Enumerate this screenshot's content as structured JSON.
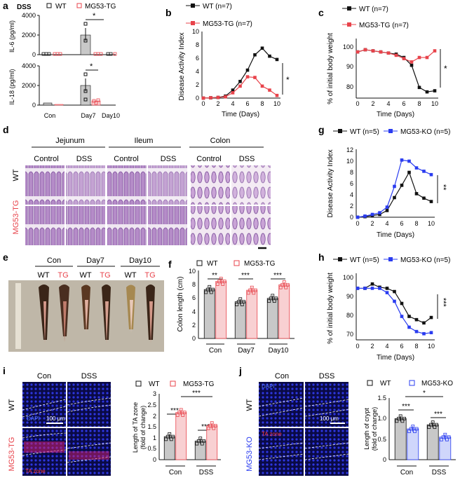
{
  "labels": {
    "a": "a",
    "b": "b",
    "c": "c",
    "d": "d",
    "e": "e",
    "f": "f",
    "g": "g",
    "h": "h",
    "i": "i",
    "j": "j"
  },
  "colors": {
    "wt": "#111111",
    "tg": "#e8434b",
    "ko": "#2a3cf0",
    "bar_gray": "#c8c8c8",
    "bar_pink": "#f8d0d2",
    "bar_blue": "#cfd6fb",
    "dapi_bg": "#0a0a46",
    "dapi_cell": "#2d36e0"
  },
  "panel_a": {
    "group_label": "DSS",
    "legend": [
      "WT",
      "MG53-TG"
    ],
    "ylabel_top": "IL-6 (pg/ml)",
    "ylabel_bottom": "IL-18 (pg/ml)",
    "yticks_top": [
      "0",
      "2000",
      "4000"
    ],
    "yticks_bottom": [
      "0",
      "2000",
      "4000"
    ],
    "xticks": [
      "Con",
      "Day7",
      "Day10"
    ],
    "star": "*"
  },
  "chart_data": [
    {
      "id": "a_top",
      "type": "bar",
      "categories": [
        "Con",
        "Day7",
        "Day10"
      ],
      "series": [
        {
          "name": "WT",
          "values": [
            0,
            2000,
            0
          ]
        },
        {
          "name": "MG53-TG",
          "values": [
            0,
            0,
            0
          ]
        }
      ],
      "ylabel": "IL-6 (pg/ml)",
      "ylim": [
        0,
        4000
      ]
    },
    {
      "id": "a_bottom",
      "type": "bar",
      "categories": [
        "Con",
        "Day7",
        "Day10"
      ],
      "series": [
        {
          "name": "WT",
          "values": [
            200,
            1950,
            50
          ]
        },
        {
          "name": "MG53-TG",
          "values": [
            60,
            400,
            40
          ]
        }
      ],
      "ylabel": "IL-18 (pg/ml)",
      "ylim": [
        0,
        4000
      ]
    },
    {
      "id": "b",
      "type": "line",
      "x": [
        0,
        1,
        2,
        3,
        4,
        5,
        6,
        7,
        8,
        9,
        10
      ],
      "series": [
        {
          "name": "WT (n=7)",
          "values": [
            0,
            0.05,
            0.1,
            0.3,
            1.2,
            2.5,
            4.2,
            6.5,
            7.5,
            6.3,
            5.8
          ]
        },
        {
          "name": "MG53-TG (n=7)",
          "values": [
            0,
            0.05,
            0.1,
            0.2,
            0.8,
            1.8,
            3.2,
            3.1,
            1.8,
            1.2,
            0.4
          ]
        }
      ],
      "xlabel": "Time (Days)",
      "ylabel": "Disease Activity Index",
      "ylim": [
        0,
        10
      ]
    },
    {
      "id": "c",
      "type": "line",
      "x": [
        0,
        1,
        2,
        3,
        4,
        5,
        6,
        7,
        8,
        9,
        10
      ],
      "series": [
        {
          "name": "WT (n=7)",
          "values": [
            100,
            101,
            100.5,
            100,
            99.5,
            99,
            97.5,
            94,
            84,
            82,
            82.5
          ]
        },
        {
          "name": "MG53-TG (n=7)",
          "values": [
            100,
            101,
            100.5,
            100,
            99.5,
            98.5,
            97,
            95.5,
            97.5,
            97.5,
            100.5
          ]
        }
      ],
      "xlabel": "Time (Days)",
      "ylabel": "% of initial body weight",
      "ylim": [
        75,
        105
      ]
    },
    {
      "id": "f",
      "type": "bar",
      "categories": [
        "Con",
        "Day7",
        "Day10"
      ],
      "series": [
        {
          "name": "WT",
          "values": [
            7.2,
            5.4,
            5.9
          ]
        },
        {
          "name": "MG53-TG",
          "values": [
            8.4,
            7.1,
            7.9
          ]
        }
      ],
      "ylabel": "Colon length (cm)",
      "ylim": [
        0,
        10
      ]
    },
    {
      "id": "g",
      "type": "line",
      "x": [
        0,
        1,
        2,
        3,
        4,
        5,
        6,
        7,
        8,
        9,
        10
      ],
      "series": [
        {
          "name": "WT (n=5)",
          "values": [
            0,
            0.1,
            0.3,
            0.5,
            1.2,
            3.5,
            5.7,
            8,
            4.2,
            3.4,
            2.8
          ]
        },
        {
          "name": "MG53-KO (n=5)",
          "values": [
            0,
            0.2,
            0.5,
            0.8,
            1.8,
            5.5,
            10.2,
            10,
            8.8,
            8.2,
            7.6
          ]
        }
      ],
      "xlabel": "Time (Days)",
      "ylabel": "Disease Activity Index",
      "ylim": [
        0,
        12
      ]
    },
    {
      "id": "h",
      "type": "line",
      "x": [
        0,
        1,
        2,
        3,
        4,
        5,
        6,
        7,
        8,
        9,
        10
      ],
      "series": [
        {
          "name": "WT (n=5)",
          "values": [
            100,
            100,
            102,
            100.5,
            100,
            98.5,
            93,
            87,
            85.5,
            84,
            86.5
          ]
        },
        {
          "name": "MG53-KO (n=5)",
          "values": [
            100,
            100,
            100,
            100,
            98,
            94,
            87,
            82,
            80,
            79,
            79.5
          ]
        }
      ],
      "xlabel": "Time (Days)",
      "ylabel": "% of initial body weight",
      "ylim": [
        70,
        105
      ]
    },
    {
      "id": "i",
      "type": "bar",
      "categories": [
        "Con",
        "DSS"
      ],
      "series": [
        {
          "name": "WT",
          "values": [
            1.05,
            0.85
          ]
        },
        {
          "name": "MG53-TG",
          "values": [
            2.15,
            1.55
          ]
        }
      ],
      "ylabel": "Length of TA zone (fold of change)",
      "ylim": [
        0,
        3
      ]
    },
    {
      "id": "j",
      "type": "bar",
      "categories": [
        "Con",
        "DSS"
      ],
      "series": [
        {
          "name": "WT",
          "values": [
            1.0,
            0.85
          ]
        },
        {
          "name": "MG53-KO",
          "values": [
            0.75,
            0.55
          ]
        }
      ],
      "ylabel": "Length of crypt (fold of change)",
      "ylim": [
        0,
        1.5
      ]
    }
  ],
  "panel_b": {
    "legend": [
      "WT (n=7)",
      "MG53-TG (n=7)"
    ],
    "xlabel": "Time (Days)",
    "ylabel": "Disease Activity Index",
    "xticks": [
      "0",
      "2",
      "4",
      "6",
      "8",
      "10"
    ],
    "yticks": [
      "0",
      "2",
      "4",
      "6",
      "8",
      "10"
    ],
    "star": "*"
  },
  "panel_c": {
    "legend": [
      "WT (n=7)",
      "MG53-TG (n=7)"
    ],
    "xlabel": "Time (Days)",
    "ylabel": "% of initial body weight",
    "xticks": [
      "0",
      "2",
      "4",
      "6",
      "8",
      "10"
    ],
    "yticks": [
      "80",
      "90",
      "100"
    ],
    "star": "*"
  },
  "panel_d": {
    "sections": [
      "Jejunum",
      "Ileum",
      "Colon"
    ],
    "columns": [
      "Control",
      "DSS",
      "Control",
      "DSS",
      "Control",
      "DSS"
    ],
    "rows": [
      "WT",
      "MG53-TG"
    ]
  },
  "panel_e": {
    "groups": [
      "Con",
      "Day7",
      "Day10"
    ],
    "genotypes": [
      "WT",
      "TG",
      "WT",
      "TG",
      "WT",
      "TG"
    ]
  },
  "panel_f": {
    "legend": [
      "WT",
      "MG53-TG"
    ],
    "ylabel": "Colon length (cm)",
    "yticks": [
      "0",
      "2",
      "4",
      "6",
      "8",
      "10"
    ],
    "xticks": [
      "Con",
      "Day7",
      "Day10"
    ],
    "stars": [
      "**",
      "***",
      "***"
    ]
  },
  "panel_g": {
    "legend": [
      "WT (n=5)",
      "MG53-KO (n=5)"
    ],
    "xlabel": "Time (Days)",
    "ylabel": "Disease Activity Index",
    "xticks": [
      "0",
      "2",
      "4",
      "6",
      "8",
      "10"
    ],
    "yticks": [
      "0",
      "2",
      "4",
      "6",
      "8",
      "10",
      "12"
    ],
    "star": "**"
  },
  "panel_h": {
    "legend": [
      "WT (n=5)",
      "MG53-KO (n=5)"
    ],
    "xlabel": "Time (Days)",
    "ylabel": "% of initial body weight",
    "xticks": [
      "0",
      "2",
      "4",
      "6",
      "8",
      "10"
    ],
    "yticks": [
      "70",
      "80",
      "90",
      "100"
    ],
    "star": "***"
  },
  "panel_i": {
    "cols": [
      "Con",
      "DSS"
    ],
    "rows": [
      "WT",
      "MG53-TG"
    ],
    "dapi": "DAPI",
    "scale": "100 μm",
    "ta_zone": "TA zone",
    "legend": [
      "WT",
      "MG53-TG"
    ],
    "ylabel_1": "Length of TA zone",
    "ylabel_2": "(fold of change)",
    "yticks": [
      "0",
      "0.5",
      "1",
      "1.5",
      "2",
      "2.5",
      "3"
    ],
    "xticks": [
      "Con",
      "DSS"
    ],
    "stars": [
      "***",
      "***",
      "***"
    ]
  },
  "panel_j": {
    "cols": [
      "Con",
      "DSS"
    ],
    "rows": [
      "WT",
      "MG53-KO"
    ],
    "dapi": "DAPI",
    "scale": "100 μm",
    "ta_zone": "TA zone",
    "legend": [
      "WT",
      "MG53-KO"
    ],
    "ylabel_1": "Length of crypt",
    "ylabel_2": "(fold of change)",
    "yticks": [
      "0",
      "0.5",
      "1.0",
      "1.5"
    ],
    "xticks": [
      "Con",
      "DSS"
    ],
    "stars": [
      "***",
      "*",
      "***"
    ]
  }
}
